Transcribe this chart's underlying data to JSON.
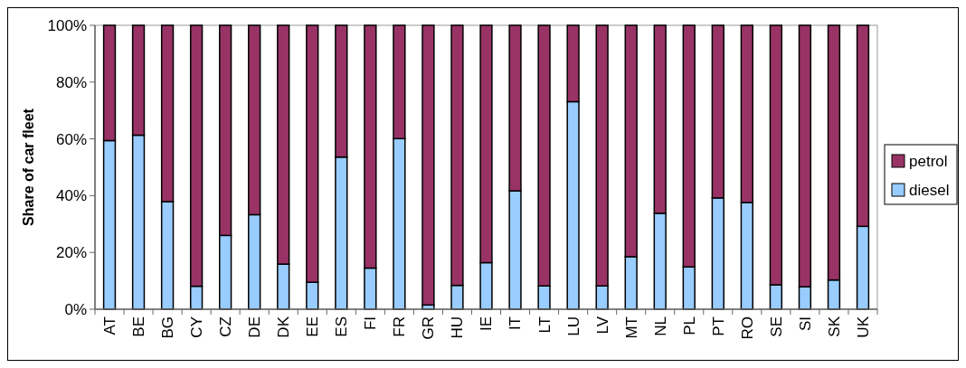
{
  "chart_data": {
    "type": "bar",
    "stacked": true,
    "ylabel": "Share of car fleet",
    "categories": [
      "AT",
      "BE",
      "BG",
      "CY",
      "CZ",
      "DE",
      "DK",
      "EE",
      "ES",
      "FI",
      "FR",
      "GR",
      "HU",
      "IE",
      "IT",
      "LT",
      "LU",
      "LV",
      "MT",
      "NL",
      "PL",
      "PT",
      "RO",
      "SE",
      "SI",
      "SK",
      "UK"
    ],
    "series": [
      {
        "name": "diesel",
        "color": "#99ccff",
        "values": [
          59.4,
          61.3,
          37.9,
          8.1,
          26,
          33.3,
          15.9,
          9.5,
          53.6,
          14.5,
          60.1,
          1.5,
          8.4,
          16.4,
          41.7,
          8.2,
          73.1,
          8.2,
          18.5,
          33.8,
          14.9,
          39.2,
          37.6,
          8.6,
          7.9,
          10.3,
          29.2
        ]
      },
      {
        "name": "petrol",
        "color": "#993366",
        "values": [
          40.6,
          38.7,
          62.1,
          91.9,
          74,
          66.7,
          84.1,
          90.5,
          46.4,
          85.5,
          39.9,
          98.5,
          91.6,
          83.6,
          58.3,
          91.8,
          26.9,
          91.8,
          81.5,
          66.2,
          85.1,
          60.8,
          62.4,
          91.4,
          92.1,
          89.7,
          70.8
        ]
      }
    ],
    "ylim": [
      0,
      100
    ],
    "yticks": [
      {
        "value": 0,
        "label": "0%"
      },
      {
        "value": 20,
        "label": "20%"
      },
      {
        "value": 40,
        "label": "40%"
      },
      {
        "value": 60,
        "label": "60%"
      },
      {
        "value": 80,
        "label": "80%"
      },
      {
        "value": 100,
        "label": "100%"
      }
    ],
    "grid": false,
    "legend": "right"
  }
}
